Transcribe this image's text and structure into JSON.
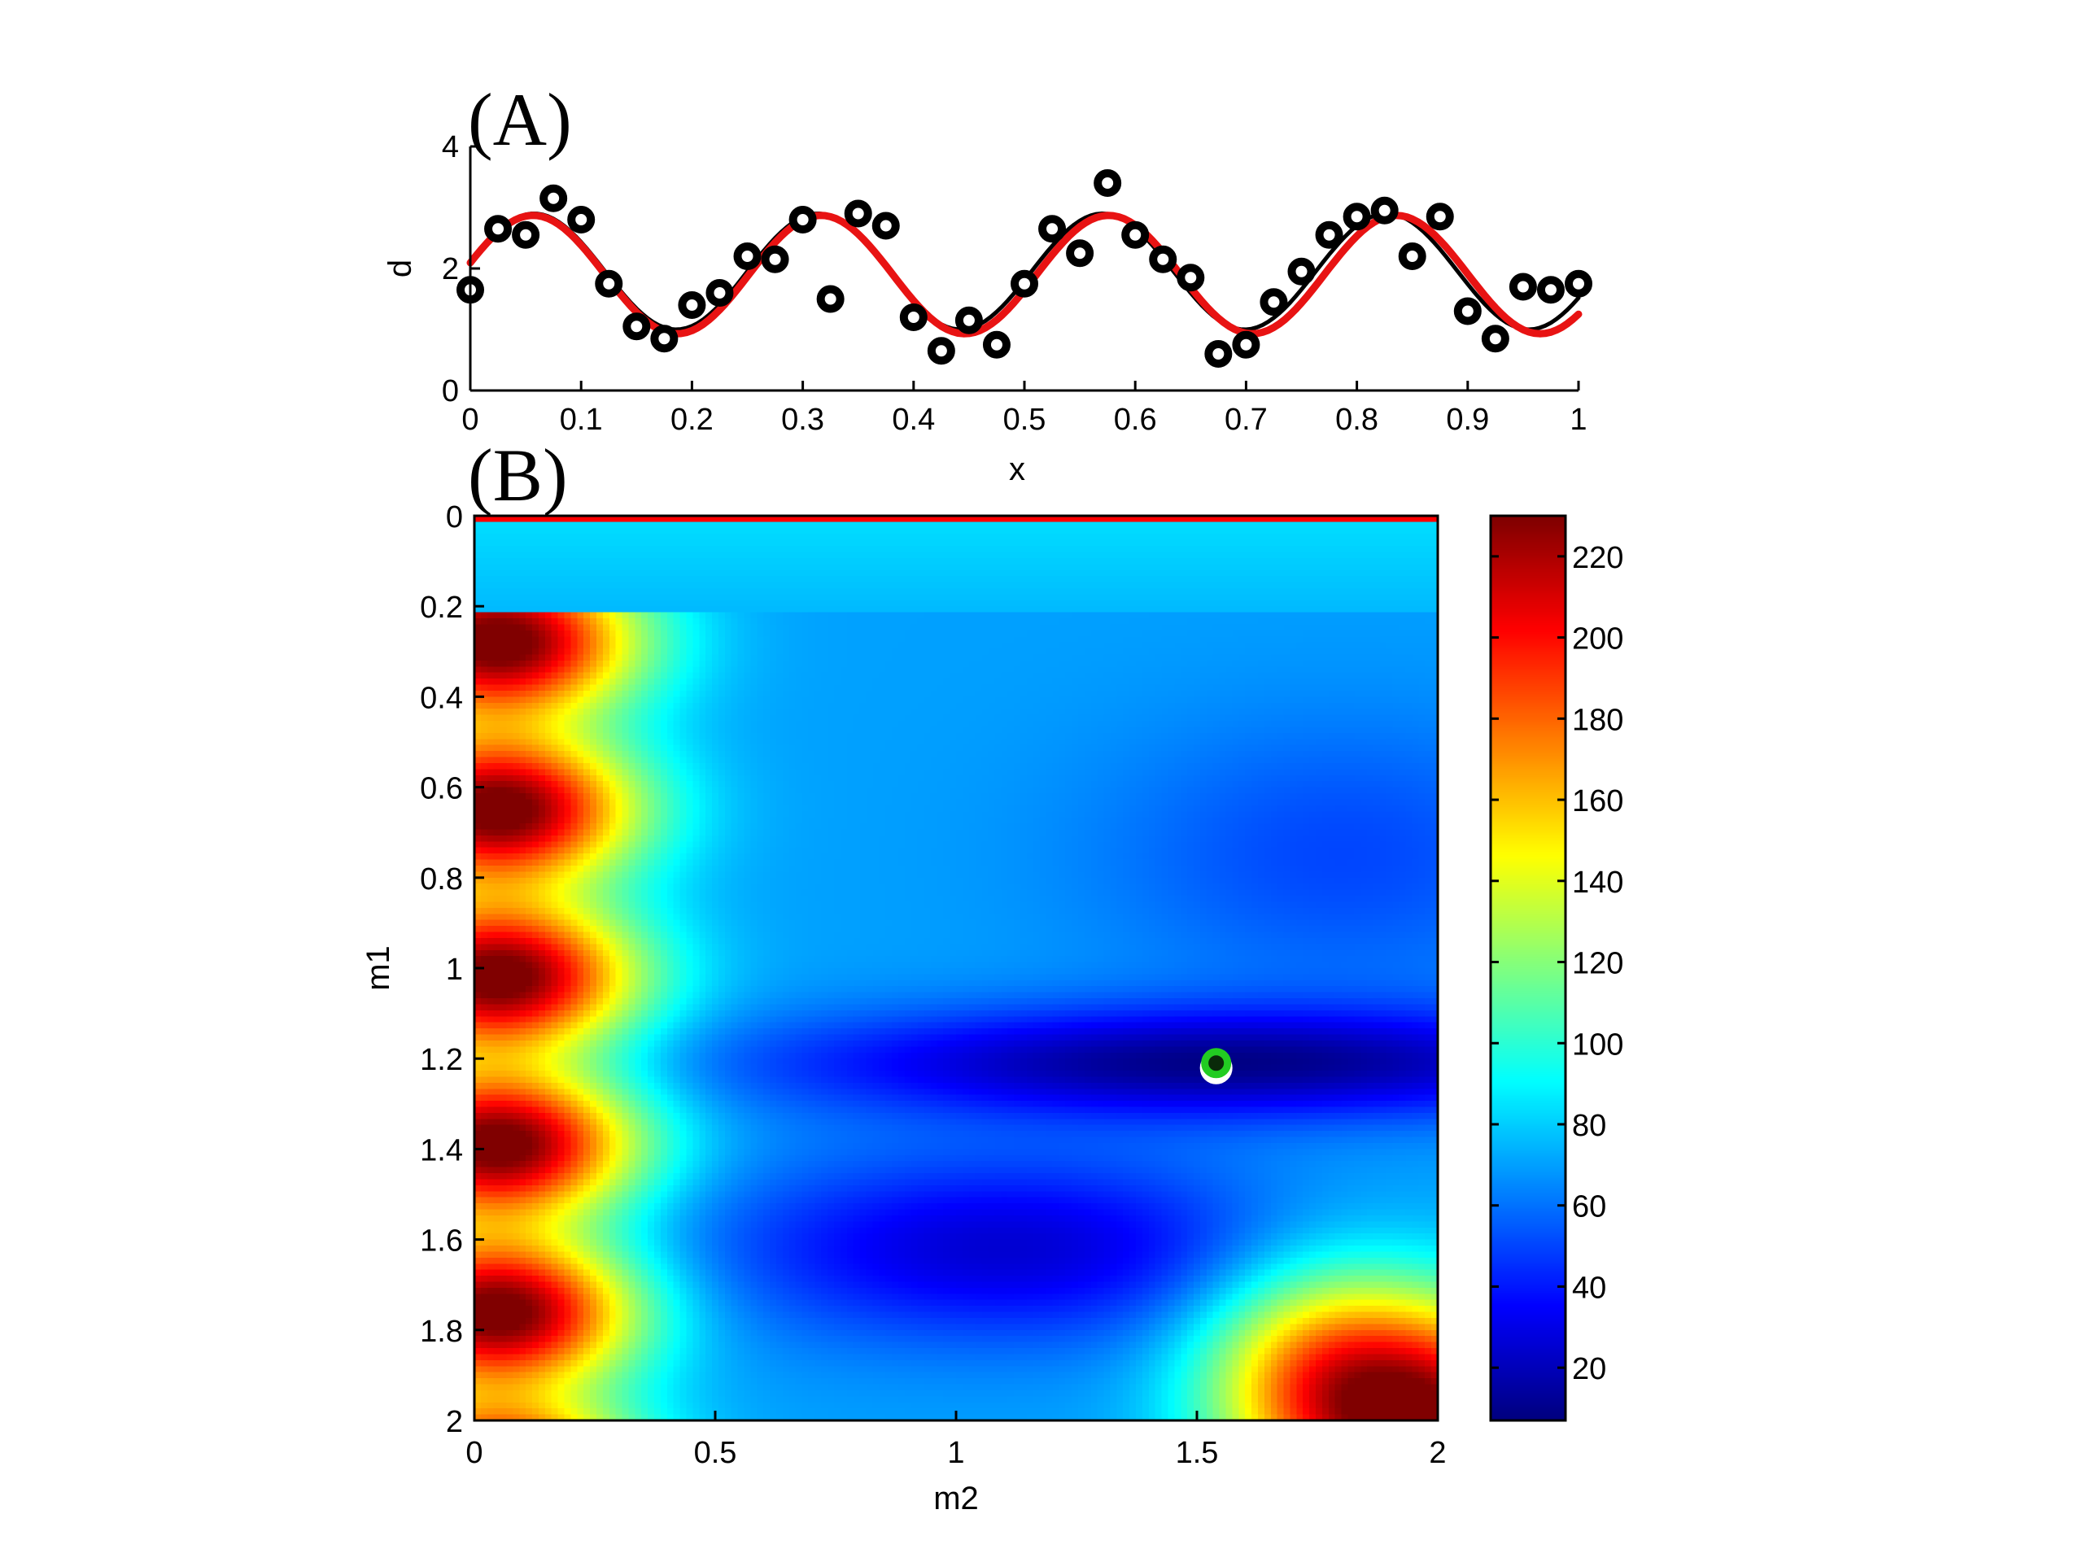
{
  "chart_data": [
    {
      "type": "scatter",
      "panel_label": "(A)",
      "xlabel": "x",
      "ylabel": "d",
      "xlim": [
        0,
        1
      ],
      "ylim": [
        0,
        4
      ],
      "xticks": [
        0,
        0.1,
        0.2,
        0.3,
        0.4,
        0.5,
        0.6,
        0.7,
        0.8,
        0.9,
        1
      ],
      "yticks": [
        0,
        2,
        4
      ],
      "grid": false,
      "series": [
        {
          "kind": "points",
          "marker": "ring",
          "color": "#000000",
          "x": [
            0.0,
            0.025,
            0.05,
            0.075,
            0.1,
            0.125,
            0.15,
            0.175,
            0.2,
            0.225,
            0.25,
            0.275,
            0.3,
            0.325,
            0.35,
            0.375,
            0.4,
            0.425,
            0.45,
            0.475,
            0.5,
            0.525,
            0.55,
            0.575,
            0.6,
            0.625,
            0.65,
            0.675,
            0.7,
            0.725,
            0.75,
            0.775,
            0.8,
            0.825,
            0.85,
            0.875,
            0.9,
            0.925,
            0.95,
            0.975,
            1.0
          ],
          "y": [
            1.65,
            2.65,
            2.55,
            3.15,
            2.8,
            1.75,
            1.05,
            0.85,
            1.4,
            1.6,
            2.2,
            2.15,
            2.8,
            1.5,
            2.9,
            2.7,
            1.2,
            0.65,
            1.15,
            0.75,
            1.75,
            2.65,
            2.25,
            3.4,
            2.55,
            2.15,
            1.85,
            0.6,
            0.75,
            1.45,
            1.95,
            2.55,
            2.85,
            2.95,
            2.2,
            2.85,
            1.3,
            0.85,
            1.7,
            1.65,
            1.75
          ]
        },
        {
          "kind": "line",
          "color": "#000000",
          "function": "1.95 + 0.95*sin(24.5*x + 0.16)",
          "x_range": [
            0,
            1
          ]
        },
        {
          "kind": "line",
          "color": "#e81313",
          "function": "1.90 + 0.97*sin(24.2*x + 0.20)",
          "x_range": [
            0,
            1
          ]
        }
      ]
    },
    {
      "type": "heatmap",
      "panel_label": "(B)",
      "xlabel": "m2",
      "ylabel": "m1",
      "xlim": [
        0,
        2
      ],
      "ylim": [
        0,
        2
      ],
      "y_reversed": true,
      "xticks": [
        0,
        0.5,
        1,
        1.5,
        2
      ],
      "xtick_labels": [
        "0",
        "0.5",
        "1",
        "1.5",
        "2"
      ],
      "yticks": [
        0,
        0.2,
        0.4,
        0.6,
        0.8,
        1,
        1.2,
        1.4,
        1.6,
        1.8,
        2
      ],
      "ytick_labels": [
        "0",
        "0.2",
        "0.4",
        "0.6",
        "0.8",
        "1",
        "1.2",
        "1.4",
        "1.6",
        "1.8",
        "2"
      ],
      "colormap": "jet",
      "color_range": [
        7,
        230
      ],
      "colorbar_ticks": [
        20,
        40,
        60,
        80,
        100,
        120,
        140,
        160,
        180,
        200,
        220
      ],
      "colorbar_tick_labels": [
        "20",
        "40",
        "60",
        "80",
        "100",
        "120",
        "140",
        "160",
        "180",
        "200",
        "220"
      ],
      "minimum": {
        "m1": 1.21,
        "m2": 1.54,
        "marker_colors": [
          "#ffffff",
          "#22cc22"
        ]
      }
    }
  ]
}
